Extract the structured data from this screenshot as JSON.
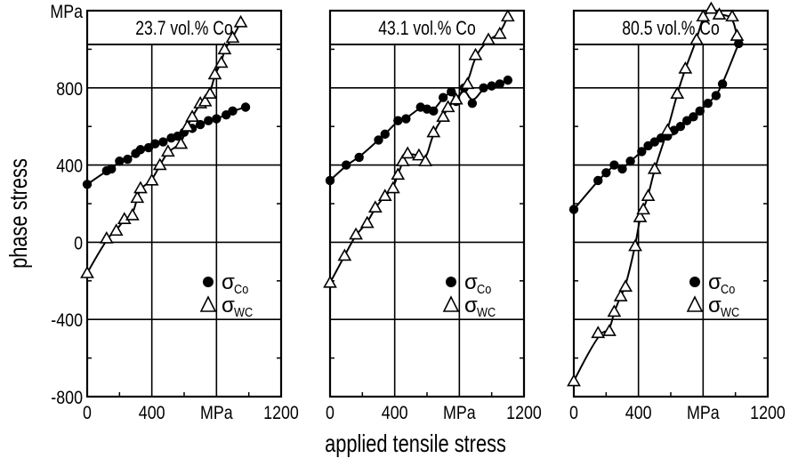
{
  "figure": {
    "ylabel": "phase stress",
    "xlabel": "applied tensile stress",
    "y_unit": "MPa",
    "x_unit": "MPa",
    "y_ticks": [
      {
        "value": -800,
        "label": "-800"
      },
      {
        "value": -400,
        "label": "-400"
      },
      {
        "value": 0,
        "label": "0"
      },
      {
        "value": 400,
        "label": "400"
      },
      {
        "value": 800,
        "label": "800"
      }
    ],
    "x_ticks": [
      {
        "value": 0,
        "label": "0"
      },
      {
        "value": 400,
        "label": "400"
      },
      {
        "value": 1200,
        "label": "1200"
      }
    ],
    "legend_labels": [
      {
        "main": "σ",
        "sub": "Co"
      },
      {
        "main": "σ",
        "sub": "WC"
      }
    ]
  },
  "chart_data": [
    {
      "type": "scatter",
      "title": "23.7 vol.% Co",
      "xlim": [
        0,
        1200
      ],
      "ylim": [
        -800,
        1200
      ],
      "grid": true,
      "legend_position": "lower-right",
      "series": [
        {
          "name": "σCo",
          "marker": "filled-circle",
          "x": [
            0,
            120,
            150,
            200,
            250,
            300,
            330,
            380,
            420,
            470,
            520,
            560,
            600,
            650,
            700,
            750,
            800,
            860,
            900,
            980
          ],
          "y": [
            300,
            370,
            380,
            420,
            430,
            460,
            480,
            490,
            510,
            520,
            540,
            550,
            570,
            590,
            610,
            630,
            640,
            660,
            680,
            700
          ]
        },
        {
          "name": "σWC",
          "marker": "open-triangle",
          "x": [
            0,
            120,
            180,
            230,
            280,
            310,
            330,
            400,
            450,
            500,
            580,
            620,
            650,
            700,
            730,
            760,
            790,
            830,
            850,
            900,
            950
          ],
          "y": [
            -160,
            20,
            60,
            120,
            140,
            230,
            280,
            320,
            400,
            470,
            510,
            600,
            650,
            720,
            730,
            770,
            870,
            930,
            1000,
            1060,
            1140
          ]
        }
      ]
    },
    {
      "type": "scatter",
      "title": "43.1 vol.% Co",
      "xlim": [
        0,
        1200
      ],
      "ylim": [
        -800,
        1200
      ],
      "grid": true,
      "legend_position": "lower-right",
      "series": [
        {
          "name": "σCo",
          "marker": "filled-circle",
          "x": [
            0,
            100,
            180,
            300,
            340,
            420,
            470,
            560,
            600,
            640,
            700,
            750,
            780,
            830,
            880,
            950,
            1000,
            1050,
            1100
          ],
          "y": [
            320,
            400,
            440,
            530,
            560,
            630,
            640,
            700,
            690,
            680,
            750,
            780,
            730,
            800,
            720,
            800,
            810,
            820,
            840
          ]
        },
        {
          "name": "σWC",
          "marker": "open-triangle",
          "x": [
            0,
            90,
            160,
            230,
            280,
            340,
            390,
            420,
            450,
            480,
            550,
            590,
            640,
            700,
            730,
            780,
            850,
            900,
            980,
            1050,
            1100
          ],
          "y": [
            -210,
            -70,
            40,
            100,
            180,
            240,
            280,
            350,
            420,
            460,
            450,
            420,
            570,
            650,
            700,
            740,
            820,
            970,
            1050,
            1080,
            1170
          ]
        }
      ]
    },
    {
      "type": "scatter",
      "title": "80.5 vol.% Co",
      "xlim": [
        0,
        1200
      ],
      "ylim": [
        -800,
        1200
      ],
      "grid": true,
      "legend_position": "lower-right",
      "series": [
        {
          "name": "σCo",
          "marker": "filled-circle",
          "x": [
            0,
            150,
            200,
            250,
            300,
            350,
            420,
            460,
            500,
            540,
            580,
            620,
            660,
            700,
            740,
            780,
            830,
            880,
            920,
            1020
          ],
          "y": [
            170,
            320,
            360,
            400,
            380,
            420,
            470,
            500,
            520,
            540,
            550,
            580,
            600,
            630,
            650,
            680,
            720,
            760,
            820,
            1030
          ]
        },
        {
          "name": "σWC",
          "marker": "open-triangle",
          "x": [
            0,
            150,
            220,
            250,
            290,
            320,
            380,
            410,
            430,
            460,
            500,
            580,
            640,
            690,
            760,
            800,
            850,
            900,
            980,
            1010
          ],
          "y": [
            -720,
            -470,
            -460,
            -360,
            -280,
            -230,
            -20,
            130,
            170,
            240,
            380,
            580,
            770,
            900,
            1050,
            1170,
            1210,
            1180,
            1170,
            1070
          ]
        }
      ]
    }
  ]
}
